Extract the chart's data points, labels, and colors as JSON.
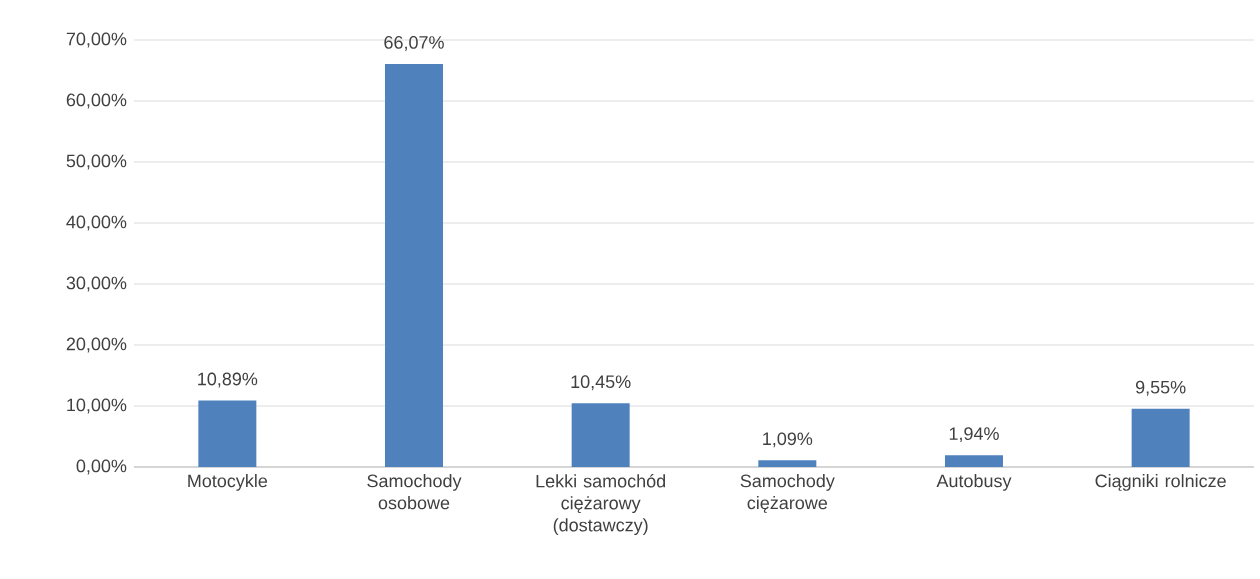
{
  "chart_data": {
    "type": "bar",
    "categories": [
      "Motocykle",
      "Samochody osobowe",
      "Lekki samochód ciężarowy (dostawczy)",
      "Samochody ciężarowe",
      "Autobusy",
      "Ciągniki rolnicze"
    ],
    "values": [
      10.89,
      66.07,
      10.45,
      1.09,
      1.94,
      9.55
    ],
    "value_labels": [
      "10,89%",
      "66,07%",
      "10,45%",
      "1,09%",
      "1,94%",
      "9,55%"
    ],
    "color": "#4f81bd",
    "ylim": [
      0,
      70
    ],
    "yticks": [
      {
        "value": 0,
        "label": "0,00%"
      },
      {
        "value": 10,
        "label": "10,00%"
      },
      {
        "value": 20,
        "label": "20,00%"
      },
      {
        "value": 30,
        "label": "30,00%"
      },
      {
        "value": 40,
        "label": "40,00%"
      },
      {
        "value": 50,
        "label": "50,00%"
      },
      {
        "value": 60,
        "label": "60,00%"
      },
      {
        "value": 70,
        "label": "70,00%"
      }
    ],
    "grid": "y"
  }
}
